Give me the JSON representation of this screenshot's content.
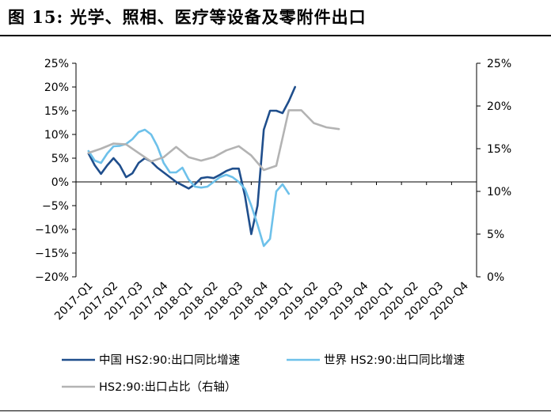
{
  "figure_title": "图 15:  光学、照相、医疗等设备及零附件出口",
  "chart_data": {
    "type": "line",
    "categories": [
      "2017-Q1",
      "2017-Q2",
      "2017-Q3",
      "2017-Q4",
      "2018-Q1",
      "2018-Q2",
      "2018-Q3",
      "2018-Q4",
      "2019-Q1",
      "2019-Q2",
      "2019-Q3",
      "2019-Q4",
      "2020-Q1",
      "2020-Q2",
      "2020-Q3",
      "2020-Q4"
    ],
    "y_left": {
      "min": -20,
      "max": 25,
      "step": 5,
      "tick_labels": [
        "−20%",
        "−15%",
        "−10%",
        "−5%",
        "0%",
        "5%",
        "10%",
        "15%",
        "20%",
        "25%"
      ]
    },
    "y_right": {
      "min": 0,
      "max": 25,
      "step": 5,
      "tick_labels": [
        "0%",
        "5%",
        "10%",
        "15%",
        "20%",
        "25%"
      ]
    },
    "grid": false,
    "legend_position": "bottom",
    "series": [
      {
        "name": "中国 HS2:90:出口同比增速",
        "axis": "left",
        "color": "#1f4e8c",
        "points": [
          [
            0,
            6
          ],
          [
            0.25,
            3.5
          ],
          [
            0.5,
            1.7
          ],
          [
            0.75,
            3.5
          ],
          [
            1,
            5
          ],
          [
            1.25,
            3.5
          ],
          [
            1.5,
            1
          ],
          [
            1.75,
            1.8
          ],
          [
            2,
            4
          ],
          [
            2.25,
            5
          ],
          [
            2.5,
            4.3
          ],
          [
            2.75,
            3
          ],
          [
            3,
            2
          ],
          [
            3.25,
            1
          ],
          [
            3.5,
            0
          ],
          [
            3.75,
            -0.7
          ],
          [
            4,
            -1.4
          ],
          [
            4.25,
            -0.5
          ],
          [
            4.5,
            0.8
          ],
          [
            4.75,
            1
          ],
          [
            5,
            0.8
          ],
          [
            5.25,
            1.5
          ],
          [
            5.5,
            2.3
          ],
          [
            5.75,
            2.8
          ],
          [
            6,
            2.8
          ],
          [
            6.25,
            -3
          ],
          [
            6.5,
            -11
          ],
          [
            6.75,
            -5
          ],
          [
            7,
            11
          ],
          [
            7.25,
            15
          ],
          [
            7.5,
            15
          ],
          [
            7.75,
            14.5
          ],
          [
            8,
            17
          ],
          [
            8.25,
            20
          ]
        ]
      },
      {
        "name": "世界 HS2:90:出口同比增速",
        "axis": "left",
        "color": "#6ec1ea",
        "points": [
          [
            0,
            6.5
          ],
          [
            0.25,
            4.5
          ],
          [
            0.5,
            4
          ],
          [
            0.75,
            6
          ],
          [
            1,
            7.5
          ],
          [
            1.25,
            7.6
          ],
          [
            1.5,
            8
          ],
          [
            1.75,
            9
          ],
          [
            2,
            10.5
          ],
          [
            2.25,
            11
          ],
          [
            2.5,
            10
          ],
          [
            2.75,
            7.5
          ],
          [
            3,
            4
          ],
          [
            3.25,
            2
          ],
          [
            3.5,
            2
          ],
          [
            3.75,
            3
          ],
          [
            4,
            0.5
          ],
          [
            4.25,
            -1
          ],
          [
            4.5,
            -1.2
          ],
          [
            4.75,
            -1
          ],
          [
            5,
            0
          ],
          [
            5.25,
            1
          ],
          [
            5.5,
            1.5
          ],
          [
            5.75,
            1
          ],
          [
            6,
            0
          ],
          [
            6.25,
            -1.5
          ],
          [
            6.5,
            -5
          ],
          [
            6.75,
            -9
          ],
          [
            7,
            -13.5
          ],
          [
            7.25,
            -12
          ],
          [
            7.5,
            -2
          ],
          [
            7.75,
            -0.5
          ],
          [
            8,
            -2.5
          ]
        ]
      },
      {
        "name": "HS2:90:出口占比（右轴）",
        "axis": "right",
        "color": "#b3b3b3",
        "points": [
          [
            0,
            14.5
          ],
          [
            0.5,
            15
          ],
          [
            1,
            15.6
          ],
          [
            1.5,
            15.5
          ],
          [
            2,
            14.5
          ],
          [
            2.5,
            13.5
          ],
          [
            3,
            14
          ],
          [
            3.5,
            15.2
          ],
          [
            4,
            14
          ],
          [
            4.5,
            13.6
          ],
          [
            5,
            14
          ],
          [
            5.5,
            14.8
          ],
          [
            6,
            15.3
          ],
          [
            6.5,
            14.2
          ],
          [
            7,
            12.5
          ],
          [
            7.5,
            13
          ],
          [
            8,
            19.5
          ],
          [
            8.5,
            19.5
          ],
          [
            9,
            18
          ],
          [
            9.5,
            17.5
          ],
          [
            10,
            17.3
          ]
        ]
      }
    ]
  }
}
